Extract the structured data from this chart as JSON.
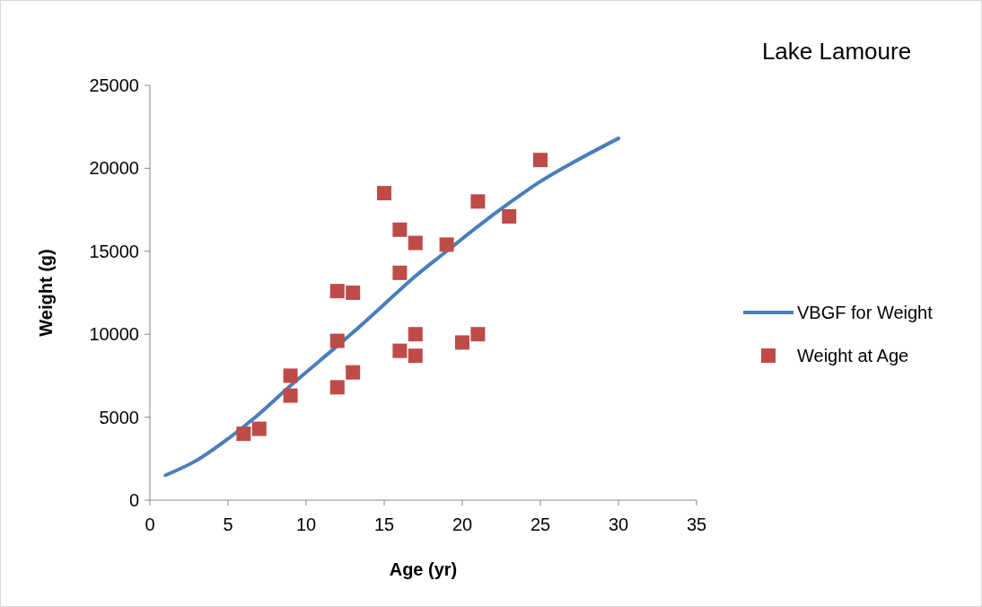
{
  "chart_data": {
    "type": "scatter",
    "title": "Lake Lamoure",
    "xlabel": "Age (yr)",
    "ylabel": "Weight (g)",
    "xlim": [
      0,
      35
    ],
    "xticks": [
      0,
      5,
      10,
      15,
      20,
      25,
      30,
      35
    ],
    "ylim": [
      0,
      25000
    ],
    "yticks": [
      0,
      5000,
      10000,
      15000,
      20000,
      25000
    ],
    "grid": false,
    "legend": "right",
    "series": [
      {
        "name": "VBGF for Weight",
        "type": "line",
        "color": "#4a7ebb",
        "marker": "none",
        "line_style": "solid",
        "x": [
          1,
          3,
          5,
          7,
          9,
          11,
          13,
          15,
          17,
          19,
          21,
          23,
          25,
          27,
          30
        ],
        "values": [
          1500,
          2400,
          3700,
          5200,
          6900,
          8500,
          10100,
          11800,
          13500,
          15000,
          16500,
          17900,
          19200,
          20300,
          21800
        ]
      },
      {
        "name": "Weight at Age",
        "color": "#be4b48",
        "marker": "square",
        "x": [
          6,
          7,
          9,
          9,
          12,
          12,
          12,
          13,
          13,
          15,
          16,
          16,
          16,
          17,
          17,
          17,
          19,
          20,
          21,
          21,
          23,
          25
        ],
        "values": [
          4000,
          4300,
          7500,
          6300,
          12600,
          9600,
          6800,
          12500,
          7700,
          18500,
          16300,
          13700,
          9000,
          15500,
          10000,
          8700,
          15400,
          9500,
          18000,
          10000,
          17100,
          20500
        ]
      }
    ]
  }
}
